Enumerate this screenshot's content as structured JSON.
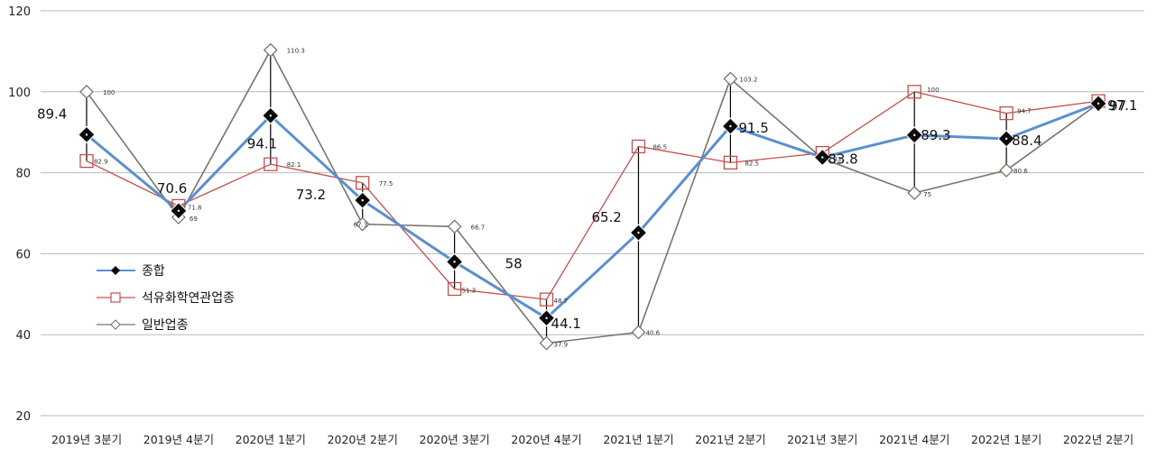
{
  "chart_data": {
    "type": "line",
    "categories": [
      "2019년 3분기",
      "2019년 4분기",
      "2020년 1분기",
      "2020년 2분기",
      "2020년 3분기",
      "2020년 4분기",
      "2021년 1분기",
      "2021년 2분기",
      "2021년 3분기",
      "2021년 4분기",
      "2022년 1분기",
      "2022년 2분기"
    ],
    "ylim": [
      20,
      120
    ],
    "yticks": [
      20,
      40,
      60,
      80,
      100,
      120
    ],
    "grid": true,
    "legend_position": "left-middle",
    "series": [
      {
        "name": "종합",
        "values": [
          89.4,
          70.6,
          94.1,
          73.2,
          58,
          44.1,
          65.2,
          91.5,
          83.8,
          89.3,
          88.4,
          97.1
        ],
        "color": "#5b8fce",
        "marker": "filled-diamond"
      },
      {
        "name": "석유화학연관업종",
        "values": [
          82.9,
          71.8,
          82.1,
          77.5,
          51.3,
          48.7,
          86.5,
          82.5,
          84.9,
          100,
          94.7,
          97.7
        ],
        "color": "#c0504d",
        "marker": "open-square"
      },
      {
        "name": "일반업종",
        "values": [
          100,
          69,
          110.3,
          67.3,
          66.7,
          37.9,
          40.6,
          103.2,
          83.5,
          75,
          80.6,
          97.1
        ],
        "color": "#77746a",
        "marker": "open-diamond"
      }
    ],
    "data_labels": {
      "composite": [
        "89.4",
        "70.6",
        "94.1",
        "73.2",
        "58",
        "44.1",
        "65.2",
        "91.5",
        "83.8",
        "89.3",
        "88.4",
        "97.1"
      ],
      "petro": [
        "82.9",
        "71.8",
        "82.1",
        "77.5",
        "51.3",
        "48.7",
        "86.5",
        "82.5",
        "",
        "100",
        "94.7",
        ""
      ],
      "general": [
        "100",
        "69",
        "110.3",
        "67.3",
        "66.7",
        "37.9",
        "40.6",
        "103.2",
        "",
        "75",
        "80.6",
        ""
      ],
      "overlap_labels": [
        "83.",
        "97"
      ]
    }
  }
}
